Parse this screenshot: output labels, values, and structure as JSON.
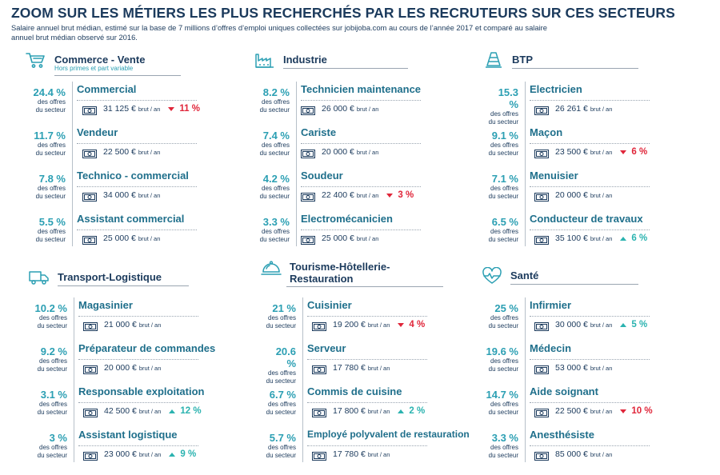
{
  "header": {
    "title": "ZOOM SUR LES MÉTIERS LES PLUS RECHERCHÉS PAR LES RECRUTEURS SUR CES SECTEURS",
    "subtitle": "Salaire annuel brut médian, estimé sur la base de 7 millions d’offres d’emploi uniques collectées sur jobijoba.com au cours de l’année 2017 et comparé au salaire annuel brut médian observé sur 2016."
  },
  "labels": {
    "offers_line1": "des offres",
    "offers_line2": "du secteur",
    "unit": "brut / an"
  },
  "colors": {
    "accent": "#2b9fb3",
    "navy": "#1b3a5c",
    "down": "#e0263a",
    "up": "#2bb3b0"
  },
  "sections": [
    {
      "title": "Commerce - Vente",
      "subtitle": "Hors primes et part variable",
      "icon": "shopping-cart-icon",
      "jobs": [
        {
          "pct": "24.4 %",
          "name": "Commercial",
          "salary": "31 125 €",
          "trend": "11 %",
          "dir": "down"
        },
        {
          "pct": "11.7 %",
          "name": "Vendeur",
          "salary": "22 500 €",
          "trend": "",
          "dir": ""
        },
        {
          "pct": "7.8 %",
          "name": "Technico - commercial",
          "salary": "34 000 €",
          "trend": "",
          "dir": ""
        },
        {
          "pct": "5.5 %",
          "name": "Assistant commercial",
          "salary": "25 000 €",
          "trend": "",
          "dir": ""
        }
      ]
    },
    {
      "title": "Industrie",
      "subtitle": "",
      "icon": "factory-icon",
      "jobs": [
        {
          "pct": "8.2 %",
          "name": "Technicien maintenance",
          "salary": "26 000 €",
          "trend": "",
          "dir": ""
        },
        {
          "pct": "7.4 %",
          "name": "Cariste",
          "salary": "20 000 €",
          "trend": "",
          "dir": ""
        },
        {
          "pct": "4.2 %",
          "name": "Soudeur",
          "salary": "22 400 €",
          "trend": "3 %",
          "dir": "down"
        },
        {
          "pct": "3.3 %",
          "name": "Electromécanicien",
          "salary": "25 000 €",
          "trend": "",
          "dir": ""
        }
      ]
    },
    {
      "title": "BTP",
      "subtitle": "",
      "icon": "traffic-cone-icon",
      "jobs": [
        {
          "pct": "15.3 %",
          "name": "Electricien",
          "salary": "26 261 €",
          "trend": "",
          "dir": ""
        },
        {
          "pct": "9.1 %",
          "name": "Maçon",
          "salary": "23 500 €",
          "trend": "6 %",
          "dir": "down"
        },
        {
          "pct": "7.1 %",
          "name": "Menuisier",
          "salary": "20 000 €",
          "trend": "",
          "dir": ""
        },
        {
          "pct": "6.5 %",
          "name": "Conducteur de travaux",
          "salary": "35 100 €",
          "trend": "6 %",
          "dir": "up"
        }
      ]
    },
    {
      "title": "Transport-Logistique",
      "subtitle": "",
      "icon": "truck-icon",
      "jobs": [
        {
          "pct": "10.2 %",
          "name": "Magasinier",
          "salary": "21 000 €",
          "trend": "",
          "dir": ""
        },
        {
          "pct": "9.2 %",
          "name": "Préparateur de commandes",
          "salary": "20 000 €",
          "trend": "",
          "dir": ""
        },
        {
          "pct": "3.1 %",
          "name": "Responsable exploitation",
          "salary": "42 500 €",
          "trend": "12 %",
          "dir": "up"
        },
        {
          "pct": "3 %",
          "name": "Assistant logistique",
          "salary": "23 000 €",
          "trend": "9 %",
          "dir": "up"
        }
      ]
    },
    {
      "title": "Tourisme-Hôtellerie-\nRestauration",
      "subtitle": "",
      "icon": "cloche-icon",
      "jobs": [
        {
          "pct": "21 %",
          "name": "Cuisinier",
          "salary": "19 200 €",
          "trend": "4 %",
          "dir": "down"
        },
        {
          "pct": "20.6 %",
          "name": "Serveur",
          "salary": "17 780 €",
          "trend": "",
          "dir": ""
        },
        {
          "pct": "6.7 %",
          "name": "Commis de cuisine",
          "salary": "17 800 €",
          "trend": "2 %",
          "dir": "up"
        },
        {
          "pct": "5.7 %",
          "name": "Employé polyvalent de restauration",
          "salary": "17 780 €",
          "trend": "",
          "dir": ""
        }
      ]
    },
    {
      "title": "Santé",
      "subtitle": "",
      "icon": "heart-pulse-icon",
      "jobs": [
        {
          "pct": "25 %",
          "name": "Infirmier",
          "salary": "30 000 €",
          "trend": "5 %",
          "dir": "up"
        },
        {
          "pct": "19.6 %",
          "name": "Médecin",
          "salary": "53 000 €",
          "trend": "",
          "dir": ""
        },
        {
          "pct": "14.7 %",
          "name": "Aide soignant",
          "salary": "22 500 €",
          "trend": "10 %",
          "dir": "down"
        },
        {
          "pct": "3.3 %",
          "name": "Anesthésiste",
          "salary": "85 000 €",
          "trend": "",
          "dir": ""
        }
      ]
    }
  ]
}
